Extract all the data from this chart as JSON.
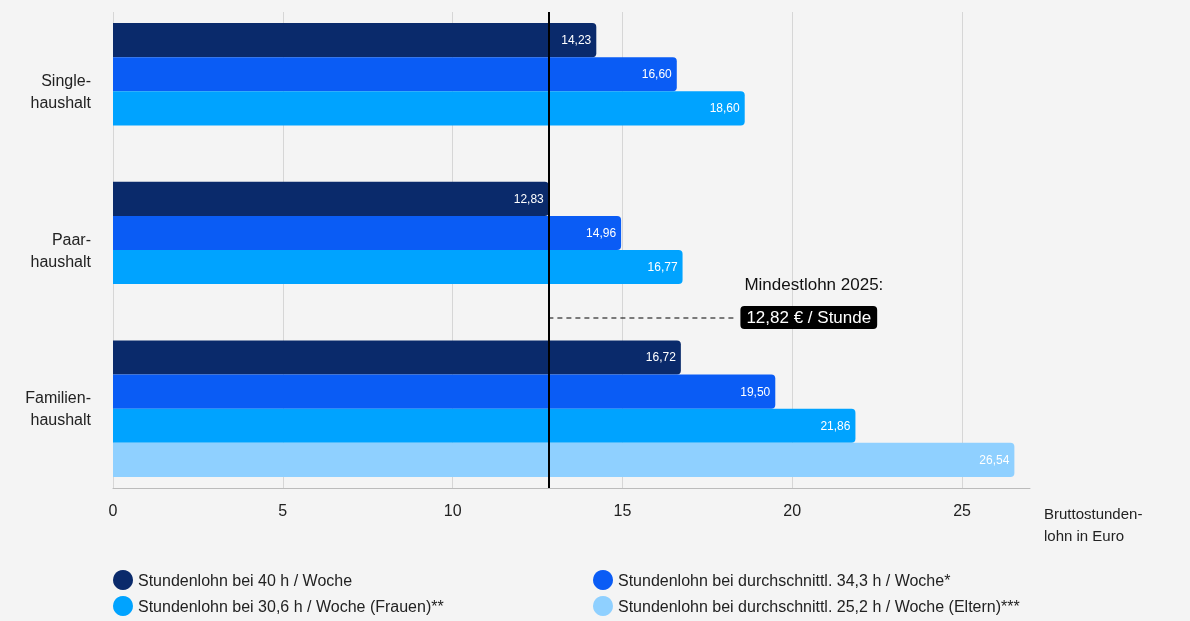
{
  "chart_data": {
    "type": "bar",
    "orientation": "horizontal",
    "xlabel": "Bruttostunden-\nlohn in Euro",
    "categories": [
      "Single-\nhaushalt",
      "Paar-\nhaushalt",
      "Familien-\nhaushalt"
    ],
    "series": [
      {
        "name": "Stundenlohn bei 40 h / Woche",
        "color": "#0a2a6b",
        "values": [
          14.23,
          12.83,
          16.72
        ],
        "value_labels": [
          "14,23",
          "12,83",
          "16,72"
        ]
      },
      {
        "name": "Stundenlohn bei durchschnittl. 34,3 h / Woche*",
        "color": "#0a5cf5",
        "values": [
          16.6,
          14.96,
          19.5
        ],
        "value_labels": [
          "16,60",
          "14,96",
          "19,50"
        ]
      },
      {
        "name": "Stundenlohn bei 30,6 h / Woche (Frauen)**",
        "color": "#00a3ff",
        "values": [
          18.6,
          16.77,
          21.86
        ],
        "value_labels": [
          "18,60",
          "16,77",
          "21,86"
        ]
      },
      {
        "name": "Stundenlohn bei durchschnittl. 25,2 h / Woche (Eltern)***",
        "color": "#8fd0ff",
        "values": [
          null,
          null,
          26.54
        ],
        "value_labels": [
          null,
          null,
          "26,54"
        ]
      }
    ],
    "xlim": [
      0,
      27
    ],
    "xticks": [
      0,
      5,
      10,
      15,
      20,
      25
    ],
    "grid": "x",
    "legend": "bottom",
    "ref_lines": [
      {
        "axis": "x",
        "value": 12.82,
        "label": "12,82 € / Stunde",
        "color": "#000000"
      }
    ],
    "annotations": [
      "Mindestlohn 2025:"
    ]
  }
}
